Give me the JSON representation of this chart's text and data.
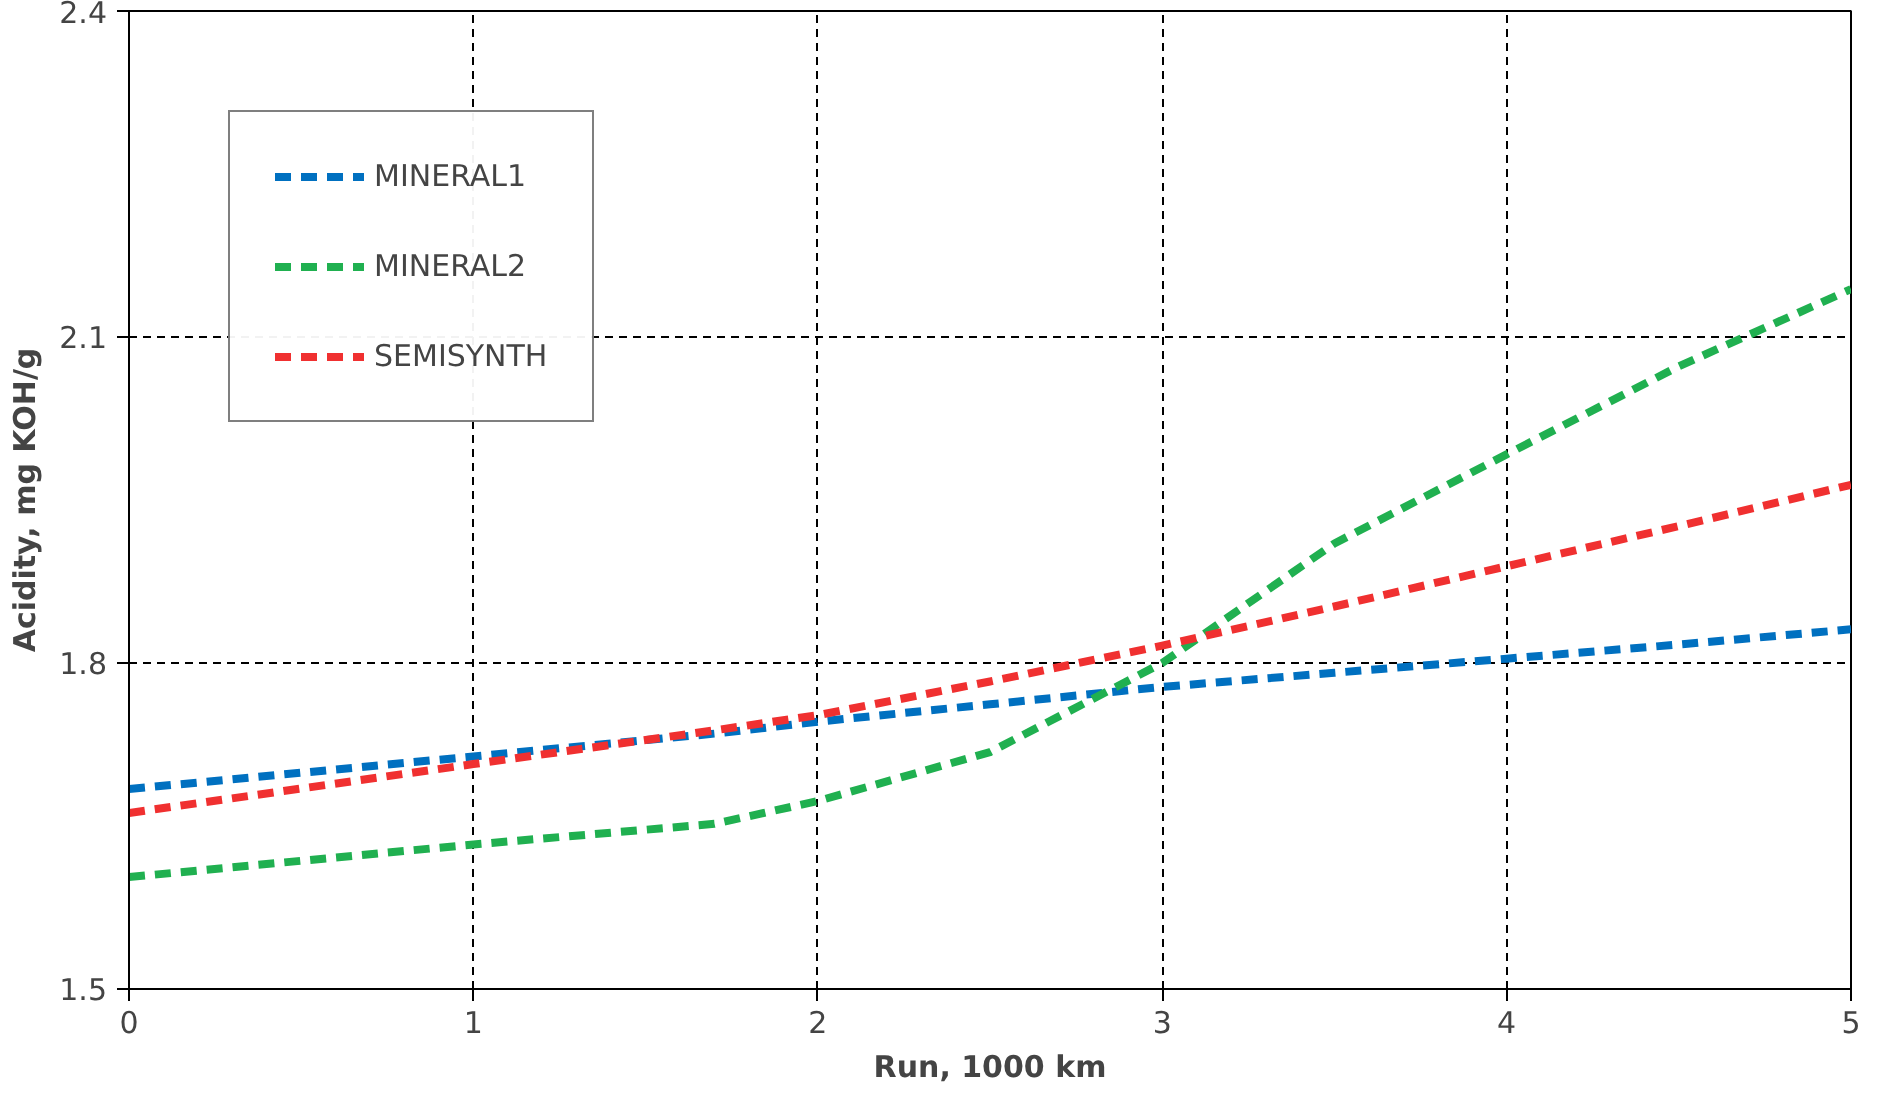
{
  "chart_data": {
    "type": "line",
    "xlabel": "Run, 1000 km",
    "ylabel": "Acidity, mg KOH/g",
    "x": [
      0,
      1,
      1.7,
      2,
      2.5,
      3,
      3.5,
      4,
      4.5,
      5
    ],
    "series": [
      {
        "name": "MINERAL1",
        "color": "#0070c0",
        "values": [
          1.684,
          1.714,
          1.735,
          1.746,
          1.762,
          1.778,
          1.791,
          1.804,
          1.817,
          1.831
        ]
      },
      {
        "name": "MINERAL2",
        "color": "#20b050",
        "values": [
          1.603,
          1.633,
          1.652,
          1.673,
          1.718,
          1.8,
          1.91,
          1.992,
          2.073,
          2.144
        ]
      },
      {
        "name": "SEMISYNTH",
        "color": "#f03030",
        "values": [
          1.662,
          1.707,
          1.738,
          1.752,
          1.783,
          1.816,
          1.852,
          1.889,
          1.926,
          1.964
        ]
      }
    ],
    "xlim": [
      0,
      5
    ],
    "ylim": [
      1.5,
      2.4
    ],
    "xticks": [
      0,
      1,
      2,
      3,
      4,
      5
    ],
    "yticks": [
      {
        "value": 1.5,
        "label": "1.5"
      },
      {
        "value": 1.8,
        "label": "1.8"
      },
      {
        "value": 2.1,
        "label": "2.1"
      },
      {
        "value": 2.4,
        "label": "2.4"
      }
    ],
    "grid": true,
    "legend": "top left",
    "line_style": "dashed",
    "marker": "none"
  }
}
